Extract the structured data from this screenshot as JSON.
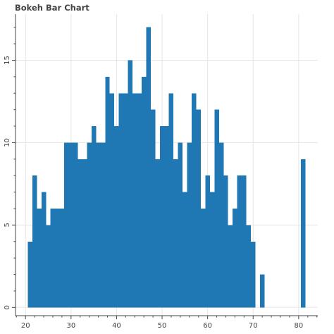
{
  "chart_data": {
    "type": "bar",
    "title": "Bokeh Bar Chart",
    "xlabel": "",
    "ylabel": "",
    "xlim": [
      17.8,
      84.2
    ],
    "ylim": [
      -0.5,
      17.8
    ],
    "grid": true,
    "bar_color": "#1f77b4",
    "grid_color": "#e5e5e5",
    "axis_color": "#444444",
    "x_ticks": [
      20,
      30,
      40,
      50,
      60,
      70,
      80
    ],
    "y_ticks": [
      0,
      5,
      10,
      15
    ],
    "bars": [
      {
        "x": 21,
        "top": 4
      },
      {
        "x": 22,
        "top": 8
      },
      {
        "x": 23,
        "top": 6
      },
      {
        "x": 24,
        "top": 7
      },
      {
        "x": 25,
        "top": 5
      },
      {
        "x": 26,
        "top": 6
      },
      {
        "x": 27,
        "top": 6
      },
      {
        "x": 28,
        "top": 6
      },
      {
        "x": 29,
        "top": 10
      },
      {
        "x": 30,
        "top": 10
      },
      {
        "x": 31,
        "top": 10
      },
      {
        "x": 32,
        "top": 9
      },
      {
        "x": 33,
        "top": 9
      },
      {
        "x": 34,
        "top": 10
      },
      {
        "x": 35,
        "top": 11
      },
      {
        "x": 36,
        "top": 10
      },
      {
        "x": 37,
        "top": 10
      },
      {
        "x": 38,
        "top": 14
      },
      {
        "x": 39,
        "top": 13
      },
      {
        "x": 40,
        "top": 11
      },
      {
        "x": 41,
        "top": 13
      },
      {
        "x": 42,
        "top": 13
      },
      {
        "x": 43,
        "top": 15
      },
      {
        "x": 44,
        "top": 13
      },
      {
        "x": 45,
        "top": 13
      },
      {
        "x": 46,
        "top": 14
      },
      {
        "x": 47,
        "top": 17
      },
      {
        "x": 48,
        "top": 12
      },
      {
        "x": 49,
        "top": 9
      },
      {
        "x": 50,
        "top": 11
      },
      {
        "x": 51,
        "top": 11
      },
      {
        "x": 52,
        "top": 13
      },
      {
        "x": 53,
        "top": 9
      },
      {
        "x": 54,
        "top": 10
      },
      {
        "x": 55,
        "top": 7
      },
      {
        "x": 56,
        "top": 10
      },
      {
        "x": 57,
        "top": 13
      },
      {
        "x": 58,
        "top": 12
      },
      {
        "x": 59,
        "top": 6
      },
      {
        "x": 60,
        "top": 8
      },
      {
        "x": 61,
        "top": 7
      },
      {
        "x": 62,
        "top": 12
      },
      {
        "x": 63,
        "top": 10
      },
      {
        "x": 64,
        "top": 8
      },
      {
        "x": 65,
        "top": 5
      },
      {
        "x": 66,
        "top": 6
      },
      {
        "x": 67,
        "top": 8
      },
      {
        "x": 68,
        "top": 8
      },
      {
        "x": 69,
        "top": 5
      },
      {
        "x": 70,
        "top": 4
      },
      {
        "x": 72,
        "top": 2
      },
      {
        "x": 81,
        "top": 9
      }
    ]
  }
}
